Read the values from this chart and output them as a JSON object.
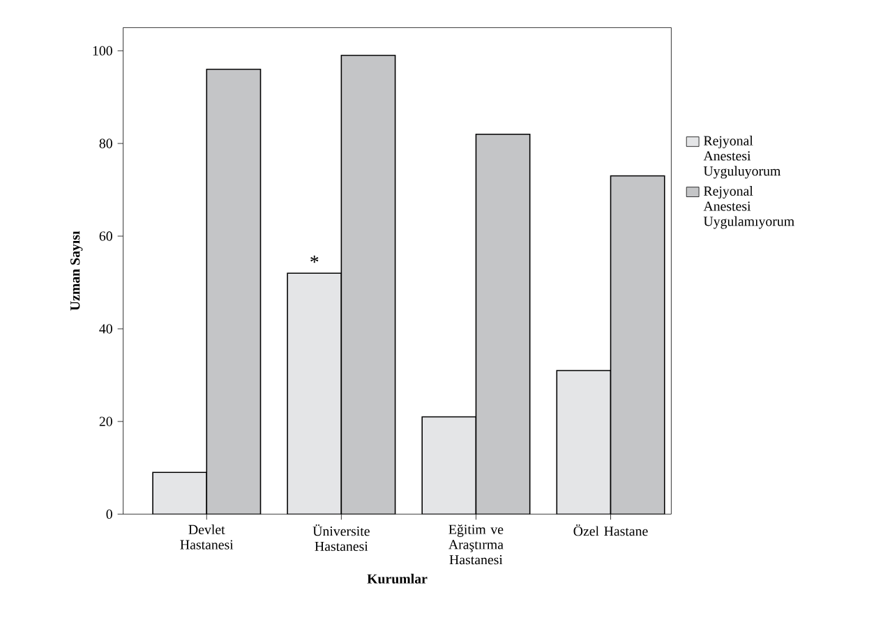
{
  "chart_data": {
    "type": "bar",
    "xlabel": "Kurumlar",
    "ylabel": "Uzman Sayısı",
    "categories": [
      "Devlet Hastanesi",
      "Üniversite Hastanesi",
      "Eğitim ve Araştırma Hastanesi",
      "Özel Hastane"
    ],
    "series": [
      {
        "name": "Rejyonal Anestesi Uyguluyorum",
        "color": "#e4e5e7",
        "values": [
          9,
          52,
          21,
          31
        ]
      },
      {
        "name": "Rejyonal Anestesi Uygulamıyorum",
        "color": "#c4c5c7",
        "values": [
          96,
          99,
          82,
          73
        ]
      }
    ],
    "ylim": [
      0,
      105
    ],
    "yticks": [
      0,
      20,
      40,
      60,
      80,
      100
    ],
    "annotations": [
      {
        "text": "*",
        "x": "Üniversite Hastanesi",
        "y": 52
      }
    ],
    "legend": "right",
    "grid": false
  }
}
